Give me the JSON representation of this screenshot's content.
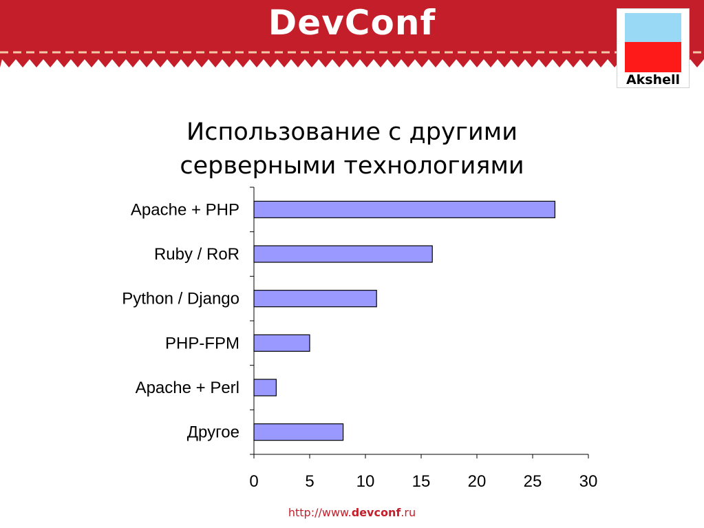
{
  "header": {
    "logo_text": "DevConf",
    "sponsor_name": "Akshell",
    "colors": {
      "banner": "#c41e2a",
      "dash": "#f4c9a8"
    }
  },
  "slide": {
    "title_line1": "Использование с другими",
    "title_line2": "серверными технологиями"
  },
  "footer": {
    "url_prefix": "http://www.",
    "url_bold": "devconf",
    "url_suffix": ".ru"
  },
  "chart_data": {
    "type": "bar",
    "orientation": "horizontal",
    "categories": [
      "Apache + PHP",
      "Ruby / RoR",
      "Python / Django",
      "PHP-FPM",
      "Apache + Perl",
      "Другое"
    ],
    "values": [
      27,
      16,
      11,
      5,
      2,
      8
    ],
    "xlim": [
      0,
      30
    ],
    "xticks": [
      0,
      5,
      10,
      15,
      20,
      25,
      30
    ],
    "grid": false,
    "legend": "none",
    "colors": {
      "bar": "#9999ff",
      "bar_stroke": "#000000"
    }
  }
}
